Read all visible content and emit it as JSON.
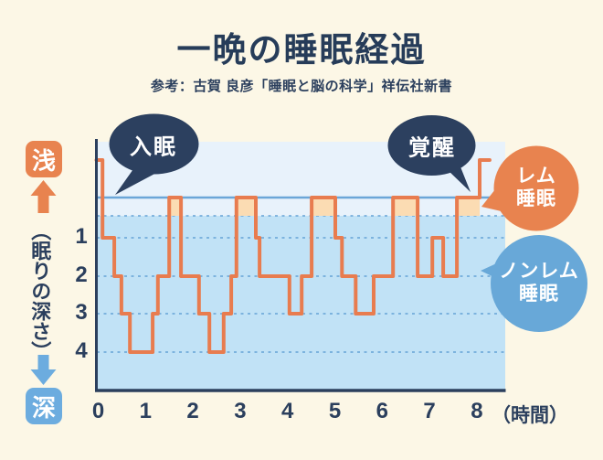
{
  "header": {
    "title": "一晩の睡眠経過",
    "subtitle": "参考：古賀 良彦「睡眠と脳の科学」祥伝社新書"
  },
  "bubbles": {
    "sleep_onset": "入眠",
    "awakening": "覚醒",
    "rem": {
      "line1": "レム",
      "line2": "睡眠"
    },
    "non_rem": {
      "line1": "ノンレム",
      "line2": "睡眠"
    }
  },
  "depth_axis": {
    "shallow_label": "浅",
    "deep_label": "深",
    "title": "（眠りの深さ）",
    "ticks": [
      "1",
      "2",
      "3",
      "4"
    ]
  },
  "time_axis": {
    "ticks": [
      "0",
      "1",
      "2",
      "3",
      "4",
      "5",
      "6",
      "7",
      "8"
    ],
    "unit": "（時間）"
  },
  "colors": {
    "background": "#FCF7E6",
    "title_navy": "#263C59",
    "navy": "#2B3F5D",
    "bubble_navy": "#2C405F",
    "line_orange": "#E87C4F",
    "rem_fill": "#FBDCB3",
    "orange_accent": "#E8834F",
    "blue_accent": "#6CACDF",
    "nonrem_blue": "#68A8D8",
    "plot_light": "#E8F2FB",
    "plot_main": "#C1E2F6",
    "grid_blue": "#66A3D6",
    "solid_line_blue": "#6BA6D8"
  },
  "chart_data": {
    "type": "line",
    "subtype": "step",
    "title": "一晩の睡眠経過",
    "xlabel": "時間",
    "ylabel": "眠りの深さ（浅→深）",
    "x_unit": "hours",
    "xlim": [
      0,
      8.6
    ],
    "x_ticks": [
      0,
      1,
      2,
      3,
      4,
      5,
      6,
      7,
      8
    ],
    "depth_levels": [
      "wake",
      "rem",
      1,
      2,
      3,
      4
    ],
    "rem_band_highlighted": true,
    "grid": "dotted horizontal lines at rem-band bottom and depths 1-4",
    "segments": [
      {
        "level": "wake",
        "from": 0.0,
        "to": 0.09
      },
      {
        "level": 1,
        "from": 0.09,
        "to": 0.34
      },
      {
        "level": 2,
        "from": 0.34,
        "to": 0.49
      },
      {
        "level": 3,
        "from": 0.49,
        "to": 0.67
      },
      {
        "level": 4,
        "from": 0.67,
        "to": 1.15
      },
      {
        "level": 3,
        "from": 1.15,
        "to": 1.26
      },
      {
        "level": 2,
        "from": 1.26,
        "to": 1.5
      },
      {
        "level": "rem",
        "from": 1.5,
        "to": 1.75
      },
      {
        "level": 2,
        "from": 1.75,
        "to": 2.13
      },
      {
        "level": 3,
        "from": 2.13,
        "to": 2.35
      },
      {
        "level": 4,
        "from": 2.35,
        "to": 2.65
      },
      {
        "level": 3,
        "from": 2.65,
        "to": 2.81
      },
      {
        "level": 2,
        "from": 2.81,
        "to": 2.92
      },
      {
        "level": "rem",
        "from": 2.92,
        "to": 3.33
      },
      {
        "level": 1,
        "from": 3.33,
        "to": 3.41
      },
      {
        "level": 2,
        "from": 3.41,
        "to": 4.04
      },
      {
        "level": 3,
        "from": 4.04,
        "to": 4.3
      },
      {
        "level": 2,
        "from": 4.3,
        "to": 4.51
      },
      {
        "level": "rem",
        "from": 4.51,
        "to": 5.01
      },
      {
        "level": 1,
        "from": 5.01,
        "to": 5.15
      },
      {
        "level": 2,
        "from": 5.15,
        "to": 5.44
      },
      {
        "level": 3,
        "from": 5.44,
        "to": 5.82
      },
      {
        "level": 2,
        "from": 5.82,
        "to": 6.23
      },
      {
        "level": "rem",
        "from": 6.23,
        "to": 6.75
      },
      {
        "level": 2,
        "from": 6.75,
        "to": 7.06
      },
      {
        "level": 1,
        "from": 7.06,
        "to": 7.29
      },
      {
        "level": 2,
        "from": 7.29,
        "to": 7.58
      },
      {
        "level": "rem",
        "from": 7.58,
        "to": 8.06
      },
      {
        "level": "wake",
        "from": 8.06,
        "to": 8.27
      }
    ],
    "annotations": [
      {
        "text": "入眠",
        "near_hour": 0
      },
      {
        "text": "覚醒",
        "near_hour": 8.1
      },
      {
        "text": "レム睡眠",
        "marks": "orange-highlighted rem band segments"
      },
      {
        "text": "ノンレム睡眠",
        "marks": "blue non-rem sleep area"
      }
    ]
  }
}
